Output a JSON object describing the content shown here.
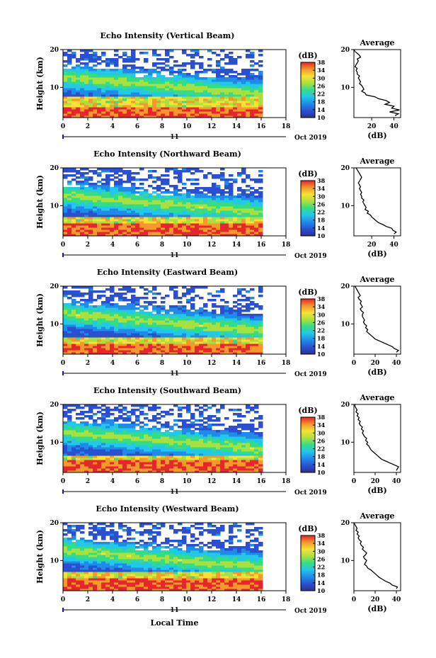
{
  "chart_data": [
    {
      "type": "heatmap",
      "title": "Echo Intensity (Vertical Beam)",
      "ylabel": "Height (km)",
      "xlabel": "",
      "x_ticks": [
        "0",
        "2",
        "4",
        "6",
        "8",
        "10",
        "12",
        "14",
        "16",
        "18"
      ],
      "xlim": [
        0,
        18
      ],
      "data_end_hour": 16,
      "y_ticks": [
        "10",
        "20"
      ],
      "ylim": [
        2,
        20
      ],
      "date_day": "11",
      "date_month_year": "Oct 2019",
      "colorbar": {
        "label": "(dB)",
        "ticks": [
          "10",
          "14",
          "18",
          "22",
          "26",
          "30",
          "34",
          "38"
        ],
        "range": [
          10,
          38
        ]
      },
      "surface_layer_top_km": 5.2,
      "base_layer_top_km": 8.0,
      "profile": {
        "title": "Average",
        "xlabel": "(dB)",
        "x_ticks": [
          "20",
          "40"
        ],
        "xlim": [
          4,
          46
        ],
        "y_ticks": [
          "10",
          "20"
        ],
        "ylim": [
          2,
          20
        ],
        "height_km": [
          2.5,
          3,
          3.5,
          4,
          4.5,
          5,
          5.5,
          6,
          6.5,
          7,
          7.5,
          8,
          8.5,
          9,
          9.5,
          10,
          10.5,
          11,
          11.5,
          12,
          12.5,
          13,
          13.5,
          14,
          14.5,
          15,
          15.5,
          16,
          16.5,
          17,
          17.5,
          18,
          18.5,
          19,
          19.5,
          20
        ],
        "echo_db": [
          41,
          44,
          36,
          45,
          38,
          40,
          32,
          36,
          33,
          26,
          23,
          15,
          14,
          11,
          13,
          12,
          11,
          9,
          10,
          9,
          8,
          9,
          7,
          7,
          6,
          7,
          5,
          6,
          7,
          8,
          7,
          10,
          9,
          7,
          5,
          4
        ]
      }
    },
    {
      "type": "heatmap",
      "title": "Echo Intensity (Northward Beam)",
      "ylabel": "Height (km)",
      "xlabel": "",
      "x_ticks": [
        "0",
        "2",
        "4",
        "6",
        "8",
        "10",
        "12",
        "14",
        "16",
        "18"
      ],
      "xlim": [
        0,
        18
      ],
      "data_end_hour": 16,
      "y_ticks": [
        "10",
        "20"
      ],
      "ylim": [
        2,
        20
      ],
      "date_day": "11",
      "date_month_year": "Oct 2019",
      "colorbar": {
        "label": "(dB)",
        "ticks": [
          "10",
          "14",
          "18",
          "22",
          "26",
          "30",
          "34",
          "38"
        ],
        "range": [
          10,
          38
        ]
      },
      "surface_layer_top_km": 5.5,
      "base_layer_top_km": 7.2,
      "profile": {
        "title": "Average",
        "xlabel": "(dB)",
        "x_ticks": [
          "20",
          "40"
        ],
        "xlim": [
          4,
          46
        ],
        "y_ticks": [
          "10",
          "20"
        ],
        "ylim": [
          2,
          20
        ],
        "height_km": [
          2.5,
          3,
          3.5,
          4,
          4.5,
          5,
          5.5,
          6,
          6.5,
          7,
          7.5,
          8,
          8.5,
          9,
          9.5,
          10,
          10.5,
          11,
          11.5,
          12,
          12.5,
          13,
          13.5,
          14,
          14.5,
          15,
          15.5,
          16,
          16.5,
          17,
          17.5,
          18,
          18.5,
          19,
          19.5,
          20
        ],
        "echo_db": [
          40,
          42,
          39,
          38,
          33,
          30,
          26,
          24,
          22,
          20,
          19,
          16,
          17,
          14,
          15,
          14,
          13,
          12,
          13,
          11,
          11,
          10,
          11,
          10,
          9,
          10,
          9,
          8,
          9,
          10,
          11,
          10,
          9,
          8,
          7,
          6
        ]
      }
    },
    {
      "type": "heatmap",
      "title": "Echo Intensity (Eastward Beam)",
      "ylabel": "Height (km)",
      "xlabel": "",
      "x_ticks": [
        "0",
        "2",
        "4",
        "6",
        "8",
        "10",
        "12",
        "14",
        "16",
        "18"
      ],
      "xlim": [
        0,
        18
      ],
      "data_end_hour": 16,
      "y_ticks": [
        "10",
        "20"
      ],
      "ylim": [
        2,
        20
      ],
      "date_day": "11",
      "date_month_year": "Oct 2019",
      "colorbar": {
        "label": "(dB)",
        "ticks": [
          "10",
          "14",
          "18",
          "22",
          "26",
          "30",
          "34",
          "38"
        ],
        "range": [
          10,
          38
        ]
      },
      "surface_layer_top_km": 5.0,
      "base_layer_top_km": 6.8,
      "profile": {
        "title": "Average",
        "xlabel": "(dB)",
        "x_ticks": [
          "0",
          "20",
          "40"
        ],
        "xlim": [
          0,
          44
        ],
        "y_ticks": [
          "10",
          "20"
        ],
        "ylim": [
          2,
          20
        ],
        "height_km": [
          2.5,
          3,
          3.5,
          4,
          4.5,
          5,
          5.5,
          6,
          6.5,
          7,
          7.5,
          8,
          8.5,
          9,
          9.5,
          10,
          10.5,
          11,
          11.5,
          12,
          12.5,
          13,
          13.5,
          14,
          14.5,
          15,
          15.5,
          16,
          16.5,
          17,
          17.5,
          18,
          18.5,
          19,
          19.5,
          20
        ],
        "echo_db": [
          40,
          42,
          38,
          36,
          32,
          28,
          24,
          20,
          18,
          16,
          14,
          12,
          13,
          11,
          12,
          10,
          9,
          10,
          9,
          8,
          8,
          9,
          7,
          6,
          8,
          7,
          6,
          7,
          5,
          4,
          6,
          5,
          4,
          3,
          2,
          1
        ]
      }
    },
    {
      "type": "heatmap",
      "title": "Echo Intensity (Southward Beam)",
      "ylabel": "Height (km)",
      "xlabel": "",
      "x_ticks": [
        "0",
        "2",
        "4",
        "6",
        "8",
        "10",
        "12",
        "14",
        "16",
        "18"
      ],
      "xlim": [
        0,
        18
      ],
      "data_end_hour": 16,
      "y_ticks": [
        "10",
        "20"
      ],
      "ylim": [
        2,
        20
      ],
      "date_day": "11",
      "date_month_year": "Oct 2019",
      "colorbar": {
        "label": "(dB)",
        "ticks": [
          "10",
          "14",
          "18",
          "22",
          "26",
          "30",
          "34",
          "38"
        ],
        "range": [
          10,
          38
        ]
      },
      "surface_layer_top_km": 5.5,
      "base_layer_top_km": 7.0,
      "profile": {
        "title": "Average",
        "xlabel": "(dB)",
        "x_ticks": [
          "0",
          "20",
          "40"
        ],
        "xlim": [
          0,
          44
        ],
        "y_ticks": [
          "10",
          "20"
        ],
        "ylim": [
          2,
          20
        ],
        "height_km": [
          2.5,
          3,
          3.5,
          4,
          4.5,
          5,
          5.5,
          6,
          6.5,
          7,
          7.5,
          8,
          8.5,
          9,
          9.5,
          10,
          10.5,
          11,
          11.5,
          12,
          12.5,
          13,
          13.5,
          14,
          14.5,
          15,
          15.5,
          16,
          16.5,
          17,
          17.5,
          18,
          18.5,
          19,
          19.5,
          20
        ],
        "echo_db": [
          40,
          41,
          42,
          38,
          34,
          30,
          26,
          24,
          22,
          20,
          18,
          16,
          15,
          14,
          12,
          13,
          11,
          12,
          10,
          9,
          8,
          9,
          7,
          8,
          6,
          5,
          6,
          4,
          5,
          3,
          4,
          2,
          3,
          2,
          1,
          1
        ]
      }
    },
    {
      "type": "heatmap",
      "title": "Echo Intensity (Westward Beam)",
      "ylabel": "Height (km)",
      "xlabel": "Local Time",
      "x_ticks": [
        "0",
        "2",
        "4",
        "6",
        "8",
        "10",
        "12",
        "14",
        "16",
        "18"
      ],
      "xlim": [
        0,
        18
      ],
      "data_end_hour": 16,
      "y_ticks": [
        "10",
        "20"
      ],
      "ylim": [
        2,
        20
      ],
      "date_day": "11",
      "date_month_year": "Oct 2019",
      "colorbar": {
        "label": "(dB)",
        "ticks": [
          "10",
          "14",
          "18",
          "22",
          "26",
          "30",
          "34",
          "38"
        ],
        "range": [
          10,
          38
        ]
      },
      "surface_layer_top_km": 5.5,
      "base_layer_top_km": 7.5,
      "profile": {
        "title": "Average",
        "xlabel": "(dB)",
        "x_ticks": [
          "0",
          "20",
          "40"
        ],
        "xlim": [
          0,
          44
        ],
        "y_ticks": [
          "10",
          "20"
        ],
        "ylim": [
          2,
          20
        ],
        "height_km": [
          2.5,
          3,
          3.5,
          4,
          4.5,
          5,
          5.5,
          6,
          6.5,
          7,
          7.5,
          8,
          8.5,
          9,
          9.5,
          10,
          10.5,
          11,
          11.5,
          12,
          12.5,
          13,
          13.5,
          14,
          14.5,
          15,
          15.5,
          16,
          16.5,
          17,
          17.5,
          18,
          18.5,
          19,
          19.5,
          20
        ],
        "echo_db": [
          40,
          41,
          36,
          34,
          30,
          27,
          24,
          22,
          20,
          18,
          16,
          13,
          12,
          10,
          11,
          12,
          10,
          9,
          11,
          12,
          10,
          8,
          9,
          7,
          6,
          7,
          5,
          4,
          5,
          3,
          4,
          2,
          3,
          2,
          1,
          0
        ]
      }
    }
  ]
}
